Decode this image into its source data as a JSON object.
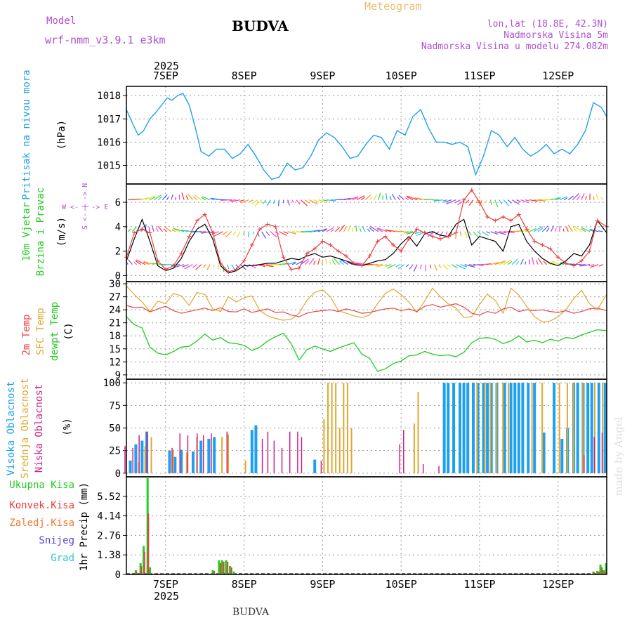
{
  "header": {
    "model_label": "Model",
    "model_name": "wrf-nmm_v3.9.1 e3km",
    "station_title": "BUDVA",
    "meteogram_label": "Meteogram",
    "lonlat": "lon,lat (18.8E, 42.3N)",
    "elevation": "Nadmorska Visina 5m",
    "model_elevation": "Nadmorska Visina u modelu 274.082m",
    "footer_station": "BUDVA",
    "watermark": "made by Angel"
  },
  "time_axis": {
    "day_labels": [
      "7SEP",
      "8SEP",
      "9SEP",
      "10SEP",
      "11SEP",
      "12SEP"
    ],
    "year_label": "2025",
    "day_positions": [
      0.5,
      1.5,
      2.5,
      3.5,
      4.5,
      5.5
    ],
    "range": [
      0.0,
      6.12
    ]
  },
  "colors": {
    "pressure": "#1ea0f0",
    "wind_speed": "#e84040",
    "wind_gust": "#000000",
    "temp_2m": "#e84848",
    "temp_sfc": "#e0a830",
    "temp_dew": "#22cc22",
    "cloud_high": "#1ea0f0",
    "cloud_mid": "#e0a830",
    "cloud_low": "#cc2288",
    "precip_total": "#22cc22",
    "precip_conv": "#e84040",
    "precip_frozen": "#f07830",
    "precip_snow": "#6040e0",
    "precip_hail": "#30c8c8",
    "purple_text": "#b050d0",
    "grid": "#888888"
  },
  "chart_data": [
    {
      "type": "line",
      "panel": "pressure",
      "ylabel_left": "Pritisak na nivou mora",
      "ylabel_unit": "(hPa)",
      "yticks": [
        "1015",
        "1016",
        "1017",
        "1018"
      ],
      "ylim": [
        1014.2,
        1018.4
      ],
      "x": [
        0.0,
        0.08,
        0.15,
        0.22,
        0.3,
        0.38,
        0.45,
        0.52,
        0.58,
        0.65,
        0.72,
        0.8,
        0.88,
        0.95,
        1.05,
        1.15,
        1.25,
        1.35,
        1.45,
        1.55,
        1.65,
        1.75,
        1.85,
        1.95,
        2.05,
        2.15,
        2.25,
        2.35,
        2.45,
        2.55,
        2.65,
        2.75,
        2.85,
        2.95,
        3.05,
        3.15,
        3.25,
        3.35,
        3.45,
        3.55,
        3.65,
        3.75,
        3.85,
        3.95,
        4.05,
        4.15,
        4.25,
        4.35,
        4.45,
        4.55,
        4.65,
        4.75,
        4.85,
        4.95,
        5.05,
        5.15,
        5.25,
        5.35,
        5.45,
        5.55,
        5.65,
        5.75,
        5.85,
        5.95,
        6.05,
        6.12
      ],
      "values": [
        1017.4,
        1016.8,
        1016.3,
        1016.5,
        1017.0,
        1017.3,
        1017.6,
        1017.9,
        1017.8,
        1018.0,
        1018.1,
        1017.6,
        1016.6,
        1015.6,
        1015.4,
        1015.7,
        1015.7,
        1015.3,
        1015.5,
        1015.9,
        1015.4,
        1014.8,
        1014.4,
        1014.5,
        1015.1,
        1014.8,
        1014.9,
        1015.4,
        1016.1,
        1016.4,
        1016.2,
        1015.8,
        1015.3,
        1015.4,
        1015.9,
        1016.3,
        1016.2,
        1015.7,
        1016.5,
        1016.3,
        1017.1,
        1017.4,
        1016.6,
        1016.0,
        1016.0,
        1015.9,
        1016.0,
        1015.8,
        1014.6,
        1015.4,
        1016.5,
        1016.3,
        1015.8,
        1016.2,
        1015.7,
        1015.4,
        1015.6,
        1015.9,
        1015.5,
        1015.7,
        1015.5,
        1015.9,
        1016.5,
        1017.7,
        1017.5,
        1017.1
      ]
    },
    {
      "type": "line",
      "panel": "wind",
      "ylabel_left1": "10m Vjetar",
      "ylabel_left2": "Brzina i Pravac",
      "ylabel_unit": "(m/s)",
      "compass": {
        "n": "N",
        "s": "S",
        "w": "W",
        "e": "E",
        "ns": "S <- | -> N",
        "we": "W <- | -> E"
      },
      "yticks": [
        "0",
        "2",
        "4",
        "6"
      ],
      "ylim": [
        -0.5,
        7.5
      ],
      "x": [
        0.0,
        0.1,
        0.2,
        0.3,
        0.4,
        0.5,
        0.6,
        0.7,
        0.8,
        0.9,
        1.0,
        1.1,
        1.2,
        1.3,
        1.4,
        1.5,
        1.6,
        1.7,
        1.8,
        1.9,
        2.0,
        2.1,
        2.2,
        2.3,
        2.4,
        2.5,
        2.6,
        2.7,
        2.8,
        2.9,
        3.0,
        3.1,
        3.2,
        3.3,
        3.4,
        3.5,
        3.6,
        3.7,
        3.8,
        3.9,
        4.0,
        4.1,
        4.2,
        4.3,
        4.4,
        4.5,
        4.6,
        4.7,
        4.8,
        4.9,
        5.0,
        5.1,
        5.2,
        5.3,
        5.4,
        5.5,
        5.6,
        5.7,
        5.8,
        5.9,
        6.0,
        6.12
      ],
      "speed": [
        1.5,
        3.5,
        3.8,
        3.5,
        1.2,
        0.5,
        0.8,
        1.8,
        3.2,
        4.5,
        5.0,
        3.5,
        1.0,
        0.3,
        0.5,
        1.2,
        2.5,
        3.8,
        4.2,
        4.0,
        1.5,
        0.5,
        0.6,
        1.8,
        2.2,
        2.8,
        2.5,
        2.0,
        1.6,
        1.0,
        0.8,
        1.6,
        2.8,
        3.2,
        2.5,
        2.0,
        3.0,
        3.8,
        3.5,
        3.2,
        3.0,
        3.2,
        3.5,
        6.2,
        7.0,
        6.0,
        4.8,
        4.5,
        4.8,
        4.5,
        5.0,
        3.8,
        2.8,
        2.5,
        2.2,
        1.5,
        1.0,
        0.8,
        1.2,
        2.0,
        4.5,
        4.0
      ],
      "gust": [
        1.2,
        3.0,
        4.6,
        2.8,
        0.8,
        0.4,
        0.6,
        1.4,
        2.8,
        3.8,
        4.2,
        3.0,
        0.8,
        0.2,
        0.4,
        0.8,
        0.8,
        0.9,
        1.0,
        1.0,
        1.2,
        1.4,
        1.3,
        1.6,
        1.8,
        1.5,
        1.6,
        1.4,
        1.2,
        0.9,
        0.8,
        1.0,
        1.2,
        1.3,
        1.8,
        2.6,
        3.2,
        2.4,
        3.4,
        3.6,
        3.3,
        3.2,
        4.2,
        4.6,
        2.5,
        3.2,
        3.0,
        2.8,
        2.0,
        4.0,
        4.2,
        2.8,
        2.0,
        1.4,
        1.0,
        0.8,
        1.2,
        1.8,
        1.6,
        2.5,
        4.5,
        3.5
      ],
      "vector_rows": [
        6.2,
        3.6,
        0.9
      ]
    },
    {
      "type": "line",
      "panel": "temperature",
      "ylabel_left1": "2m Temp",
      "ylabel_left2": "SFC Temp",
      "ylabel_left3": "dewpt Temp",
      "ylabel_unit": "(C)",
      "yticks": [
        "9",
        "12",
        "15",
        "18",
        "21",
        "24",
        "27",
        "30"
      ],
      "ylim": [
        8.0,
        30.5
      ],
      "x": [
        0.0,
        0.1,
        0.2,
        0.3,
        0.4,
        0.5,
        0.6,
        0.7,
        0.8,
        0.9,
        1.0,
        1.1,
        1.2,
        1.3,
        1.4,
        1.5,
        1.6,
        1.7,
        1.8,
        1.9,
        2.0,
        2.1,
        2.2,
        2.3,
        2.4,
        2.5,
        2.6,
        2.7,
        2.8,
        2.9,
        3.0,
        3.1,
        3.2,
        3.3,
        3.4,
        3.5,
        3.6,
        3.7,
        3.8,
        3.9,
        4.0,
        4.1,
        4.2,
        4.3,
        4.4,
        4.5,
        4.6,
        4.7,
        4.8,
        4.9,
        5.0,
        5.1,
        5.2,
        5.3,
        5.4,
        5.5,
        5.6,
        5.7,
        5.8,
        5.9,
        6.0,
        6.12
      ],
      "temp_2m": [
        25.0,
        24.5,
        24.6,
        23.5,
        24.2,
        24.8,
        23.8,
        23.2,
        23.6,
        24.0,
        24.4,
        23.8,
        24.5,
        23.6,
        23.5,
        24.2,
        23.4,
        23.8,
        24.2,
        23.4,
        23.5,
        22.8,
        22.4,
        23.2,
        23.6,
        23.8,
        24.0,
        23.6,
        24.2,
        23.8,
        23.2,
        23.4,
        23.8,
        24.2,
        24.4,
        23.8,
        24.2,
        23.6,
        24.8,
        25.2,
        24.6,
        25.0,
        25.4,
        24.6,
        23.2,
        22.8,
        23.6,
        23.2,
        24.2,
        24.6,
        23.6,
        24.0,
        23.8,
        24.0,
        23.6,
        23.4,
        23.8,
        23.2,
        23.6,
        24.2,
        24.4,
        23.8
      ],
      "temp_sfc": [
        29.5,
        27.5,
        25.8,
        23.6,
        26.0,
        25.4,
        27.8,
        27.2,
        25.0,
        28.0,
        27.5,
        24.2,
        23.6,
        27.0,
        25.8,
        26.8,
        27.2,
        23.8,
        22.6,
        22.0,
        21.6,
        21.8,
        23.2,
        26.2,
        28.0,
        28.6,
        27.0,
        23.8,
        23.2,
        22.6,
        22.2,
        22.8,
        25.4,
        27.8,
        28.8,
        27.5,
        25.8,
        23.4,
        26.0,
        29.0,
        27.0,
        25.4,
        24.4,
        22.2,
        22.4,
        25.2,
        27.6,
        26.2,
        23.2,
        29.0,
        27.4,
        24.8,
        22.4,
        21.2,
        21.4,
        22.4,
        24.0,
        26.6,
        28.5,
        25.4,
        24.0,
        27.6
      ],
      "temp_dew": [
        22.4,
        20.6,
        19.8,
        15.4,
        14.0,
        13.6,
        14.4,
        15.4,
        15.6,
        16.8,
        18.4,
        17.0,
        17.6,
        16.4,
        16.2,
        15.8,
        14.6,
        15.4,
        16.8,
        17.8,
        18.6,
        16.2,
        12.4,
        14.8,
        15.6,
        15.0,
        14.4,
        15.2,
        15.8,
        16.4,
        13.8,
        12.8,
        9.8,
        10.4,
        11.6,
        12.2,
        13.4,
        13.6,
        14.4,
        13.8,
        13.4,
        13.6,
        13.2,
        14.2,
        16.4,
        17.4,
        17.6,
        17.2,
        16.2,
        16.8,
        18.0,
        16.6,
        17.0,
        16.4,
        17.2,
        16.8,
        17.6,
        17.4,
        18.2,
        18.8,
        19.4,
        19.2
      ]
    },
    {
      "type": "bar",
      "panel": "clouds",
      "ylabel_left1": "Visoka Oblacnost",
      "ylabel_left2": "Srednja Oblacnost",
      "ylabel_left3": "Niska Oblacnost",
      "ylabel_unit": "(%)",
      "yticks": [
        "0",
        "25",
        "50",
        "75",
        "100"
      ],
      "ylim": [
        -4,
        104
      ],
      "high": [
        [
          0.05,
          14
        ],
        [
          0.12,
          32
        ],
        [
          0.2,
          36
        ],
        [
          0.26,
          46
        ],
        [
          0.55,
          25
        ],
        [
          0.62,
          18
        ],
        [
          0.7,
          26
        ],
        [
          0.85,
          24
        ],
        [
          0.95,
          36
        ],
        [
          1.05,
          38
        ],
        [
          1.12,
          40
        ],
        [
          1.6,
          48
        ],
        [
          1.65,
          53
        ],
        [
          2.4,
          15
        ],
        [
          4.05,
          100
        ],
        [
          4.1,
          100
        ],
        [
          4.17,
          100
        ],
        [
          4.25,
          100
        ],
        [
          4.3,
          100
        ],
        [
          4.35,
          100
        ],
        [
          4.42,
          100
        ],
        [
          4.48,
          100
        ],
        [
          4.55,
          100
        ],
        [
          4.6,
          100
        ],
        [
          4.65,
          100
        ],
        [
          4.72,
          100
        ],
        [
          4.82,
          100
        ],
        [
          4.9,
          100
        ],
        [
          4.95,
          100
        ],
        [
          5.0,
          100
        ],
        [
          5.05,
          100
        ],
        [
          5.12,
          100
        ],
        [
          5.2,
          100
        ],
        [
          5.32,
          45
        ],
        [
          5.45,
          100
        ],
        [
          5.55,
          38
        ],
        [
          5.62,
          50
        ],
        [
          5.7,
          100
        ],
        [
          5.75,
          100
        ],
        [
          5.82,
          100
        ],
        [
          5.88,
          100
        ],
        [
          5.93,
          100
        ],
        [
          6.02,
          100
        ],
        [
          6.1,
          100
        ]
      ],
      "mid": [
        [
          0.14,
          12
        ],
        [
          0.22,
          30
        ],
        [
          0.3,
          40
        ],
        [
          0.58,
          26
        ],
        [
          0.75,
          23
        ],
        [
          0.88,
          40
        ],
        [
          1.2,
          40
        ],
        [
          1.28,
          43
        ],
        [
          1.5,
          14
        ],
        [
          2.5,
          60
        ],
        [
          2.55,
          100
        ],
        [
          2.6,
          100
        ],
        [
          2.65,
          100
        ],
        [
          2.7,
          50
        ],
        [
          2.75,
          100
        ],
        [
          2.8,
          100
        ],
        [
          2.85,
          50
        ],
        [
          3.65,
          55
        ],
        [
          3.7,
          90
        ],
        [
          4.45,
          100
        ],
        [
          4.55,
          100
        ],
        [
          4.62,
          100
        ],
        [
          4.7,
          100
        ],
        [
          4.78,
          100
        ],
        [
          4.85,
          100
        ],
        [
          5.15,
          100
        ],
        [
          5.28,
          100
        ],
        [
          5.5,
          100
        ],
        [
          5.6,
          100
        ],
        [
          5.68,
          100
        ],
        [
          5.8,
          100
        ],
        [
          5.95,
          100
        ],
        [
          6.05,
          100
        ]
      ],
      "low": [
        [
          0.0,
          30
        ],
        [
          0.1,
          28
        ],
        [
          0.18,
          42
        ],
        [
          0.28,
          46
        ],
        [
          0.6,
          28
        ],
        [
          0.7,
          44
        ],
        [
          0.8,
          42
        ],
        [
          0.92,
          44
        ],
        [
          1.0,
          42
        ],
        [
          1.1,
          44
        ],
        [
          1.3,
          46
        ],
        [
          1.4,
          0
        ],
        [
          1.75,
          38
        ],
        [
          1.82,
          46
        ],
        [
          1.9,
          36
        ],
        [
          2.0,
          28
        ],
        [
          2.1,
          46
        ],
        [
          2.2,
          46
        ],
        [
          2.25,
          40
        ],
        [
          2.5,
          14
        ],
        [
          3.5,
          32
        ],
        [
          3.55,
          48
        ],
        [
          3.8,
          10
        ],
        [
          4.0,
          8
        ],
        [
          5.85,
          20
        ],
        [
          5.98,
          40
        ],
        [
          6.08,
          45
        ]
      ]
    },
    {
      "type": "bar",
      "panel": "precip",
      "legend": [
        "Ukupna Kisa",
        "Konvek.Kisa",
        "Zaledj.Kisa",
        "Snijeg",
        "Grad"
      ],
      "ylabel_unit": "1hr Precip (mm)",
      "yticks": [
        "0",
        "1.38",
        "2.76",
        "4.14",
        "5.52"
      ],
      "ylim": [
        0,
        6.9
      ],
      "total": [
        [
          0.12,
          0.3
        ],
        [
          0.18,
          0.8
        ],
        [
          0.22,
          2.0
        ],
        [
          0.27,
          6.8
        ],
        [
          0.3,
          0.5
        ],
        [
          0.45,
          0.05
        ],
        [
          0.75,
          0.05
        ],
        [
          1.1,
          0.3
        ],
        [
          1.18,
          1.0
        ],
        [
          1.22,
          1.0
        ],
        [
          1.27,
          1.0
        ],
        [
          1.32,
          0.6
        ],
        [
          1.37,
          0.2
        ],
        [
          5.95,
          0.2
        ],
        [
          6.0,
          0.25
        ],
        [
          6.04,
          0.7
        ],
        [
          6.08,
          0.3
        ],
        [
          6.11,
          0.8
        ]
      ],
      "convective": [
        [
          0.13,
          0.2
        ],
        [
          0.19,
          0.6
        ],
        [
          0.23,
          1.6
        ],
        [
          0.28,
          4.3
        ],
        [
          1.12,
          0.25
        ],
        [
          1.2,
          0.8
        ],
        [
          1.24,
          0.9
        ],
        [
          1.29,
          0.9
        ],
        [
          1.34,
          0.5
        ],
        [
          5.96,
          0.15
        ],
        [
          6.02,
          0.2
        ],
        [
          6.06,
          0.5
        ],
        [
          6.1,
          0.2
        ]
      ]
    }
  ]
}
